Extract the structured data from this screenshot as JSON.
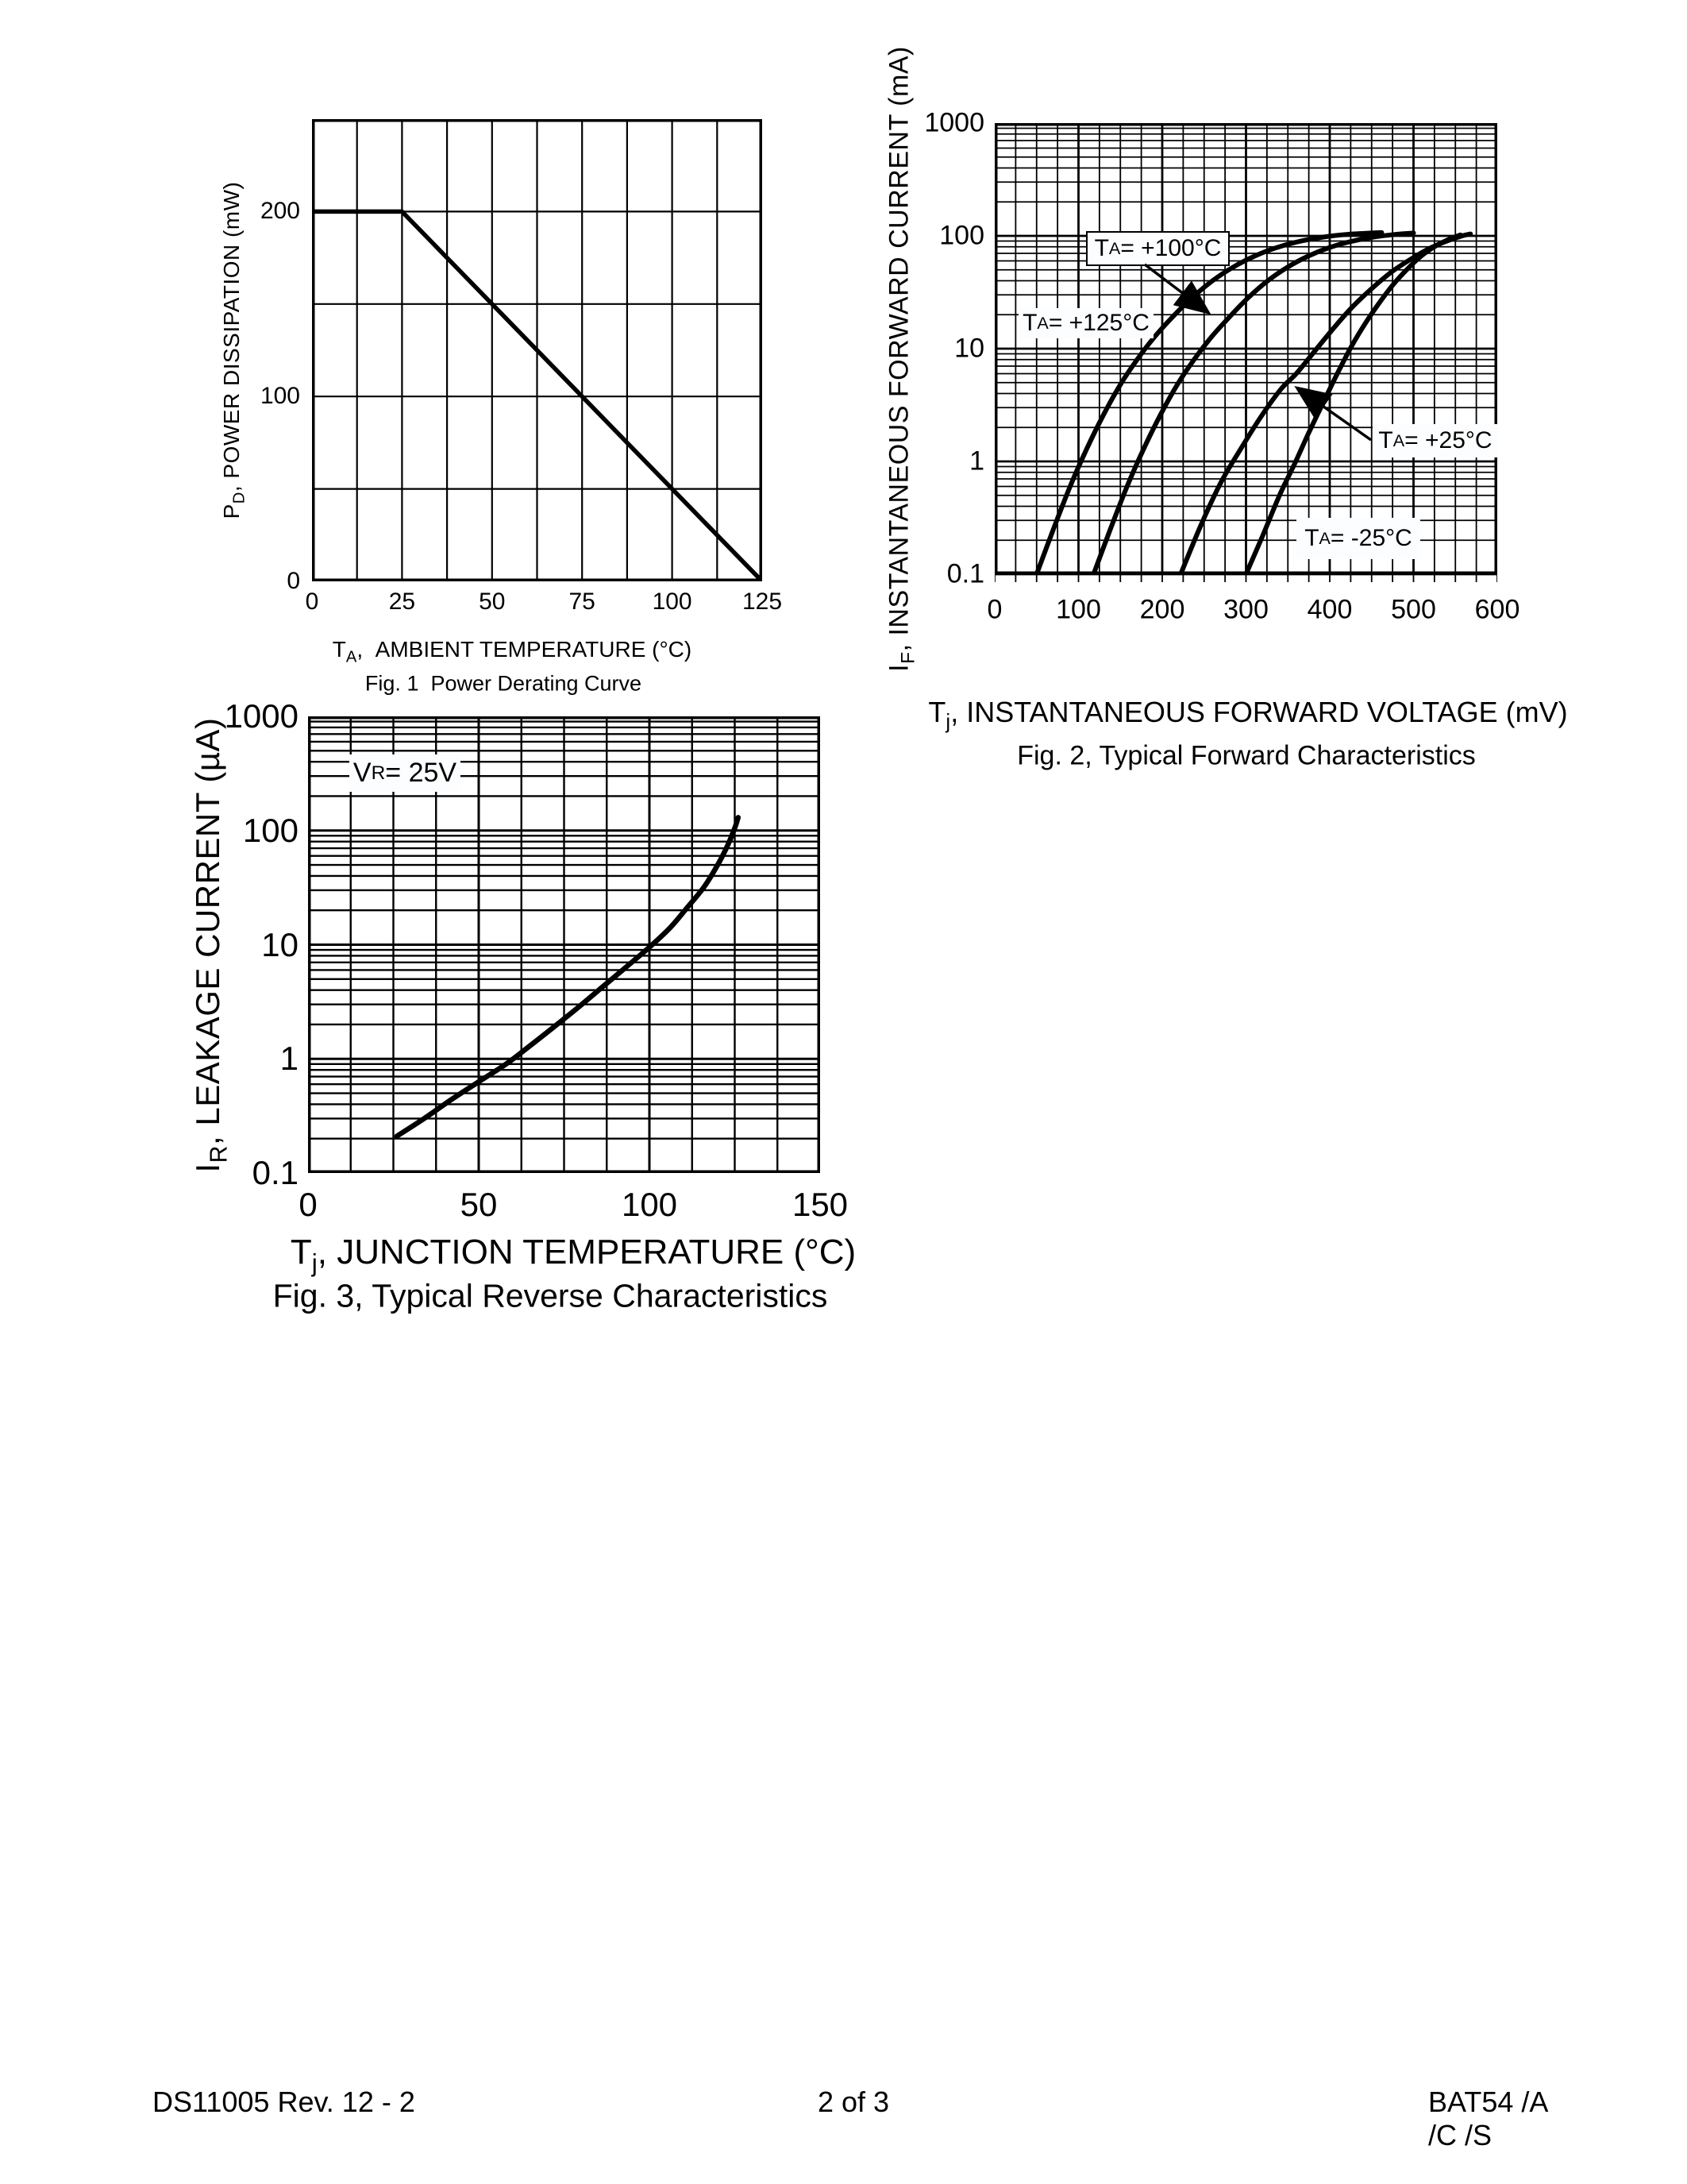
{
  "colors": {
    "ink": "#000000",
    "paper": "#ffffff",
    "annotation_bg": "#fcfdff"
  },
  "footer": {
    "left": "DS11005 Rev. 12 - 2",
    "center": "2 of 3",
    "right": "BAT54 /A /C /S"
  },
  "chart_data": [
    {
      "id": "fig1",
      "type": "line",
      "title": "Fig. 1  Power Derating Curve",
      "xlabel": "TA, AMBIENT TEMPERATURE (°C)",
      "ylabel": "PD, POWER DISSIPATION (mW)",
      "xlabel_parts": [
        [
          "t",
          "T"
        ],
        [
          "sub",
          "A"
        ],
        [
          "t",
          ",  AMBIENT TEMPERATURE (°C)"
        ]
      ],
      "ylabel_parts": [
        [
          "t",
          "P"
        ],
        [
          "sub",
          "D"
        ],
        [
          "t",
          ", POWER DISSIPATION (mW)"
        ]
      ],
      "x": {
        "scale": "linear",
        "min": 0,
        "max": 125,
        "grid_step": 12.5,
        "ticks": [
          0,
          25,
          50,
          75,
          100,
          125
        ]
      },
      "y": {
        "scale": "linear",
        "min": 0,
        "max": 250,
        "grid_step": 50,
        "ticks": [
          200,
          100,
          0
        ]
      },
      "grid": "on",
      "series": [
        {
          "name": "power-derating",
          "smooth": false,
          "points": [
            [
              0,
              200
            ],
            [
              25,
              200
            ],
            [
              125,
              0
            ]
          ]
        }
      ],
      "annotations": []
    },
    {
      "id": "fig2",
      "type": "line",
      "title": "Fig. 2, Typical Forward Characteristics",
      "xlabel": "Tj, INSTANTANEOUS FORWARD VOLTAGE (mV)",
      "ylabel": "IF, INSTANTANEOUS FORWARD CURRENT (mA)",
      "xlabel_parts": [
        [
          "t",
          "T"
        ],
        [
          "sub",
          "j"
        ],
        [
          "t",
          ", INSTANTANEOUS FORWARD VOLTAGE (mV)"
        ]
      ],
      "ylabel_parts": [
        [
          "t",
          "I"
        ],
        [
          "sub",
          "F"
        ],
        [
          "t",
          ", INSTANTANEOUS FORWARD CURRENT (mA)"
        ]
      ],
      "x": {
        "scale": "linear",
        "min": 0,
        "max": 600,
        "grid_step": 25,
        "major_every": 100,
        "ticks": [
          0,
          100,
          200,
          300,
          400,
          500,
          600
        ]
      },
      "y": {
        "scale": "log",
        "min": 0.1,
        "max": 1000,
        "ticks": [
          1000,
          100,
          10,
          1,
          0.1
        ]
      },
      "grid": "on",
      "series": [
        {
          "name": "TA=+125C",
          "smooth": true,
          "points": [
            [
              50,
              0.1
            ],
            [
              70,
              0.25
            ],
            [
              90,
              0.6
            ],
            [
              110,
              1.3
            ],
            [
              130,
              2.6
            ],
            [
              150,
              4.8
            ],
            [
              170,
              8
            ],
            [
              190,
              12.5
            ],
            [
              212,
              19
            ],
            [
              235,
              28
            ],
            [
              260,
              40
            ],
            [
              285,
              53
            ],
            [
              310,
              66
            ],
            [
              335,
              78
            ],
            [
              360,
              88
            ],
            [
              390,
              97
            ],
            [
              420,
              103
            ],
            [
              450,
              106
            ],
            [
              462,
              107
            ]
          ]
        },
        {
          "name": "TA=+100C",
          "smooth": true,
          "points": [
            [
              118,
              0.1
            ],
            [
              138,
              0.25
            ],
            [
              158,
              0.6
            ],
            [
              178,
              1.3
            ],
            [
              198,
              2.6
            ],
            [
              218,
              4.8
            ],
            [
              238,
              8
            ],
            [
              258,
              12.5
            ],
            [
              280,
              19
            ],
            [
              302,
              28
            ],
            [
              326,
              40
            ],
            [
              350,
              53
            ],
            [
              374,
              66
            ],
            [
              398,
              78
            ],
            [
              422,
              88
            ],
            [
              450,
              97
            ],
            [
              478,
              103
            ],
            [
              500,
              106
            ]
          ]
        },
        {
          "name": "TA=+25C",
          "smooth": true,
          "points": [
            [
              222,
              0.1
            ],
            [
              246,
              0.27
            ],
            [
              270,
              0.65
            ],
            [
              294,
              1.3
            ],
            [
              318,
              2.5
            ],
            [
              342,
              4.4
            ],
            [
              360,
              6
            ],
            [
              382,
              9.5
            ],
            [
              404,
              15
            ],
            [
              426,
              23
            ],
            [
              450,
              34
            ],
            [
              474,
              48
            ],
            [
              498,
              63
            ],
            [
              520,
              78
            ],
            [
              540,
              90
            ],
            [
              558,
              100
            ],
            [
              568,
              104
            ]
          ]
        },
        {
          "name": "TA=-25C",
          "smooth": true,
          "points": [
            [
              300,
              0.1
            ],
            [
              320,
              0.22
            ],
            [
              340,
              0.5
            ],
            [
              358,
              0.95
            ],
            [
              375,
              1.8
            ],
            [
              392,
              3.3
            ],
            [
              409,
              6
            ],
            [
              426,
              10.5
            ],
            [
              443,
              17
            ],
            [
              460,
              26
            ],
            [
              477,
              38
            ],
            [
              494,
              52
            ],
            [
              510,
              67
            ],
            [
              526,
              81
            ],
            [
              542,
              93
            ],
            [
              556,
              102
            ]
          ]
        }
      ],
      "annotations": [
        {
          "name": "ta-plus-100",
          "label": "TA = +100°C",
          "label_parts": [
            [
              "t",
              "T"
            ],
            [
              "sub",
              "A"
            ],
            [
              "t",
              " = +100°C"
            ]
          ],
          "boxed": true
        },
        {
          "name": "ta-plus-125",
          "label": "TA = +125°C",
          "label_parts": [
            [
              "t",
              "T"
            ],
            [
              "sub",
              "A"
            ],
            [
              "t",
              " = +125°C"
            ]
          ],
          "boxed": false
        },
        {
          "name": "ta-plus-25",
          "label": "TA = +25°C",
          "label_parts": [
            [
              "t",
              "T"
            ],
            [
              "sub",
              "A"
            ],
            [
              "t",
              " = +25°C"
            ]
          ],
          "boxed": false
        },
        {
          "name": "ta-minus-25",
          "label": "TA = -25°C",
          "label_parts": [
            [
              "t",
              "T"
            ],
            [
              "sub",
              "A"
            ],
            [
              "t",
              " = -25°C"
            ]
          ],
          "boxed": false
        }
      ]
    },
    {
      "id": "fig3",
      "type": "line",
      "title": "Fig. 3, Typical Reverse Characteristics",
      "xlabel": "Tj, JUNCTION TEMPERATURE (°C)",
      "ylabel": "IR, LEAKAGE CURRENT (µA)",
      "xlabel_parts": [
        [
          "t",
          "T"
        ],
        [
          "sub",
          "j"
        ],
        [
          "t",
          ", JUNCTION TEMPERATURE (°C)"
        ]
      ],
      "ylabel_parts": [
        [
          "t",
          "I"
        ],
        [
          "sub",
          "R"
        ],
        [
          "t",
          ", LEAKAGE CURRENT (µA)"
        ]
      ],
      "x": {
        "scale": "linear",
        "min": 0,
        "max": 150,
        "grid_step": 12.5,
        "major_every": 50,
        "ticks": [
          0,
          50,
          100,
          150
        ]
      },
      "y": {
        "scale": "log",
        "min": 0.1,
        "max": 1000,
        "ticks": [
          1000,
          100,
          10,
          1,
          0.1
        ]
      },
      "grid": "on",
      "series": [
        {
          "name": "leakage-vs-temp",
          "smooth": true,
          "points": [
            [
              26,
              0.21
            ],
            [
              34,
              0.3
            ],
            [
              42,
              0.44
            ],
            [
              50,
              0.63
            ],
            [
              58,
              0.9
            ],
            [
              65,
              1.3
            ],
            [
              72,
              1.9
            ],
            [
              79,
              2.8
            ],
            [
              86,
              4.2
            ],
            [
              93,
              6.3
            ],
            [
              100,
              9.5
            ],
            [
              106,
              14
            ],
            [
              111,
              21
            ],
            [
              116,
              32
            ],
            [
              120,
              50
            ],
            [
              123,
              75
            ],
            [
              125,
              105
            ],
            [
              126,
              130
            ]
          ]
        }
      ],
      "annotations": [
        {
          "name": "vr-condition",
          "label": "VR = 25V",
          "label_parts": [
            [
              "t",
              "V"
            ],
            [
              "sub",
              "R"
            ],
            [
              "t",
              " = 25V"
            ]
          ],
          "boxed": false
        }
      ]
    }
  ]
}
